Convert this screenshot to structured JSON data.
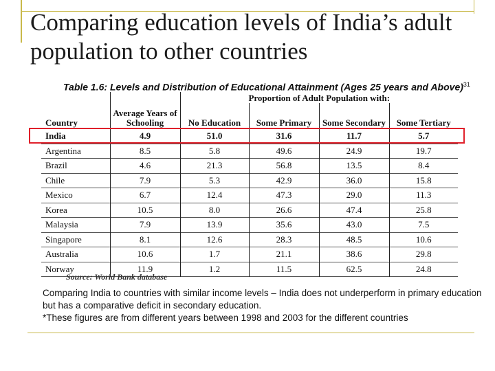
{
  "slide": {
    "title": "Comparing education levels of  India’s adult population to other countries",
    "table_caption": "Table 1.6: Levels and Distribution of Educational Attainment (Ages 25 years and Above)",
    "table_caption_ref": "31",
    "source": "Source: World Bank database",
    "note_line1": "Comparing India to countries with similar income levels – India does not underperform in primary education but has a comparative deficit in secondary education.",
    "note_line2": "*These figures are from different years between 1998 and 2003 for the different countries",
    "highlight_color": "#e0202a",
    "accent_color": "#c9b94a"
  },
  "table": {
    "header_country": "Country",
    "header_avg": "Average Years of Schooling",
    "header_group": "Proportion of Adult Population with:",
    "header_cols": [
      "No Education",
      "Some Primary",
      "Some Secondary",
      "Some Tertiary"
    ],
    "rows": [
      {
        "country": "India",
        "avg": "4.9",
        "none": "51.0",
        "primary": "31.6",
        "secondary": "11.7",
        "tertiary": "5.7"
      },
      {
        "country": "Argentina",
        "avg": "8.5",
        "none": "5.8",
        "primary": "49.6",
        "secondary": "24.9",
        "tertiary": "19.7"
      },
      {
        "country": "Brazil",
        "avg": "4.6",
        "none": "21.3",
        "primary": "56.8",
        "secondary": "13.5",
        "tertiary": "8.4"
      },
      {
        "country": "Chile",
        "avg": "7.9",
        "none": "5.3",
        "primary": "42.9",
        "secondary": "36.0",
        "tertiary": "15.8"
      },
      {
        "country": "Mexico",
        "avg": "6.7",
        "none": "12.4",
        "primary": "47.3",
        "secondary": "29.0",
        "tertiary": "11.3"
      },
      {
        "country": "Korea",
        "avg": "10.5",
        "none": "8.0",
        "primary": "26.6",
        "secondary": "47.4",
        "tertiary": "25.8"
      },
      {
        "country": "Malaysia",
        "avg": "7.9",
        "none": "13.9",
        "primary": "35.6",
        "secondary": "43.0",
        "tertiary": "7.5"
      },
      {
        "country": "Singapore",
        "avg": "8.1",
        "none": "12.6",
        "primary": "28.3",
        "secondary": "48.5",
        "tertiary": "10.6"
      },
      {
        "country": "Australia",
        "avg": "10.6",
        "none": "1.7",
        "primary": "21.1",
        "secondary": "38.6",
        "tertiary": "29.8"
      },
      {
        "country": "Norway",
        "avg": "11.9",
        "none": "1.2",
        "primary": "11.5",
        "secondary": "62.5",
        "tertiary": "24.8"
      }
    ]
  }
}
